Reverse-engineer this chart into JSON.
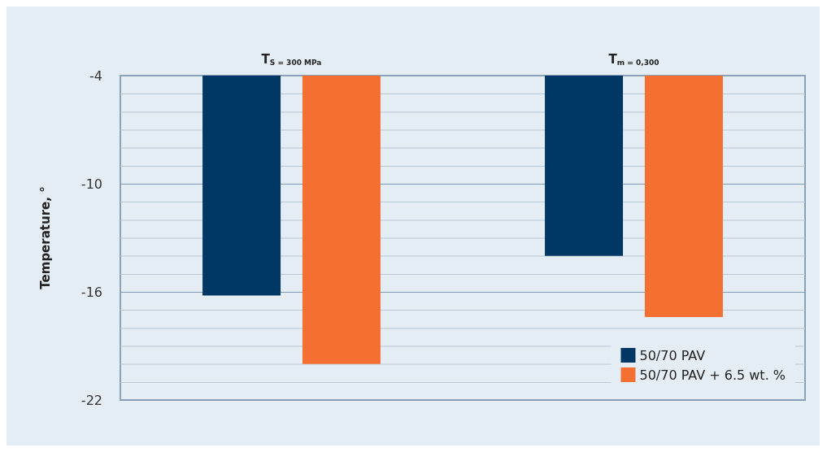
{
  "chart_data": {
    "type": "bar",
    "ylabel": "Temperature, °",
    "categories": [
      "T$_{S = 300 MPa}$",
      "T$_{m = 0,300}$"
    ],
    "series": [
      {
        "name": "50/70 PAV",
        "color": "#003764",
        "values": [
          -16.2,
          -14.0
        ]
      },
      {
        "name": "50/70 PAV + 6.5 wt. %",
        "color": "#f37032",
        "values": [
          -20.0,
          -17.4
        ]
      }
    ],
    "ylim": [
      -22,
      -4
    ],
    "yticks": [
      -22,
      {
        "value": -21,
        "label": null
      },
      {
        "value": -20,
        "label": null
      },
      {
        "value": -19,
        "label": null
      },
      {
        "value": -18,
        "label": null
      },
      {
        "value": -17,
        "label": null
      },
      -16,
      {
        "value": -15,
        "label": null
      },
      {
        "value": -14,
        "label": null
      },
      {
        "value": -13,
        "label": null
      },
      {
        "value": -12,
        "label": null
      },
      {
        "value": -11,
        "label": null
      },
      -10,
      {
        "value": -9,
        "label": null
      },
      {
        "value": -8,
        "label": null
      },
      {
        "value": -7,
        "label": null
      },
      {
        "value": -6,
        "label": null
      },
      {
        "value": -5,
        "label": null
      },
      -4
    ],
    "grid": "y",
    "legend": "bottom right"
  }
}
